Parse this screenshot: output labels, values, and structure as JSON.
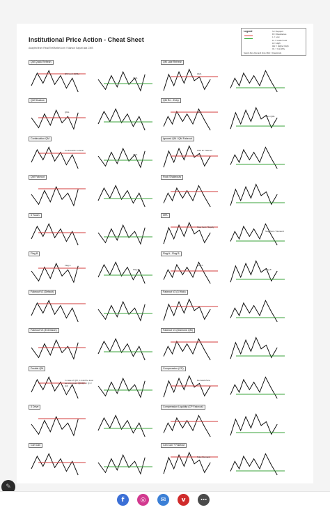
{
  "document": {
    "title": "Institutional Price Action - Cheat Sheet",
    "subtitle": "Adapted from ReadTheMarket.com / Mansor Sapari aka CMS"
  },
  "legend": {
    "title": "Legend",
    "items": [
      "S = Support",
      "R = Resistance",
      "L = Low",
      "LL = Lower Low",
      "H = High",
      "HH = Higher High",
      "HL = Liquidity",
      "QML = Quasimodo"
    ],
    "footer": "Supply Zone   Demand Zone   QML = Quasimodo"
  },
  "sections": [
    {
      "label": "QM Quick Refresh",
      "notes": [
        "QM level (QML)",
        "QML"
      ]
    },
    {
      "label": "QM Late Refresh",
      "notes": [
        "QML"
      ]
    },
    {
      "label": "QM Shadow",
      "notes": [
        "QML"
      ]
    },
    {
      "label": "QM Re - Entry",
      "notes": [
        "QML",
        "Main QML"
      ]
    },
    {
      "label": "Continuation QM",
      "notes": [
        "Continuation Lateral",
        "QML"
      ]
    },
    {
      "label": "Ignored QM / QM Fakeout",
      "notes": [
        "Wait for Fakeout"
      ]
    },
    {
      "label": "QM Fakeout",
      "notes": []
    },
    {
      "label": "Rock Shakeouts",
      "notes": []
    },
    {
      "label": "3 Touch",
      "notes": []
    },
    {
      "label": "MPL",
      "notes": [
        "Stop hunt / Supply",
        "Stop hunt / Demand"
      ]
    },
    {
      "label": "Flag B",
      "notes": [
        "Flag A",
        "Flag B",
        "Flag Limit / Supply",
        "Flag Limit / Demand"
      ]
    },
    {
      "label": "Flag A - Flag B",
      "notes": [
        "Flag A",
        "Flag B"
      ]
    },
    {
      "label": "Fakeout V1 (Default)",
      "notes": []
    },
    {
      "label": "Fakeout V2 (3 Wick)",
      "notes": []
    },
    {
      "label": "Fakeout V3 (Extension)",
      "notes": []
    },
    {
      "label": "Fakeout V4 (Diamond QM)",
      "notes": []
    },
    {
      "label": "Double QM",
      "notes": [
        "In case of QM, it could be level as entry point (Q1/Q2 or Q1 / Q2)"
      ]
    },
    {
      "label": "Compression (CP)",
      "notes": [
        "Demand Zone"
      ]
    },
    {
      "label": "3 Drive",
      "notes": []
    },
    {
      "label": "Compression Liquidity (CP Fakeout)",
      "notes": []
    },
    {
      "label": "Can Can",
      "notes": []
    },
    {
      "label": "Can Can + Fakeout",
      "notes": [
        "Fake Demand"
      ]
    }
  ],
  "social": {
    "facebook": "f",
    "instagram": "◎",
    "email": "✉",
    "pinterest": "v",
    "more": "⋯"
  },
  "colors": {
    "supply": "#d33b3b",
    "demand": "#3aa33a",
    "facebook": "#3b6fd6",
    "instagram": "#d2398f",
    "email": "#3b7fd6",
    "pinterest": "#d02b2b",
    "more": "#4a4a4a"
  }
}
